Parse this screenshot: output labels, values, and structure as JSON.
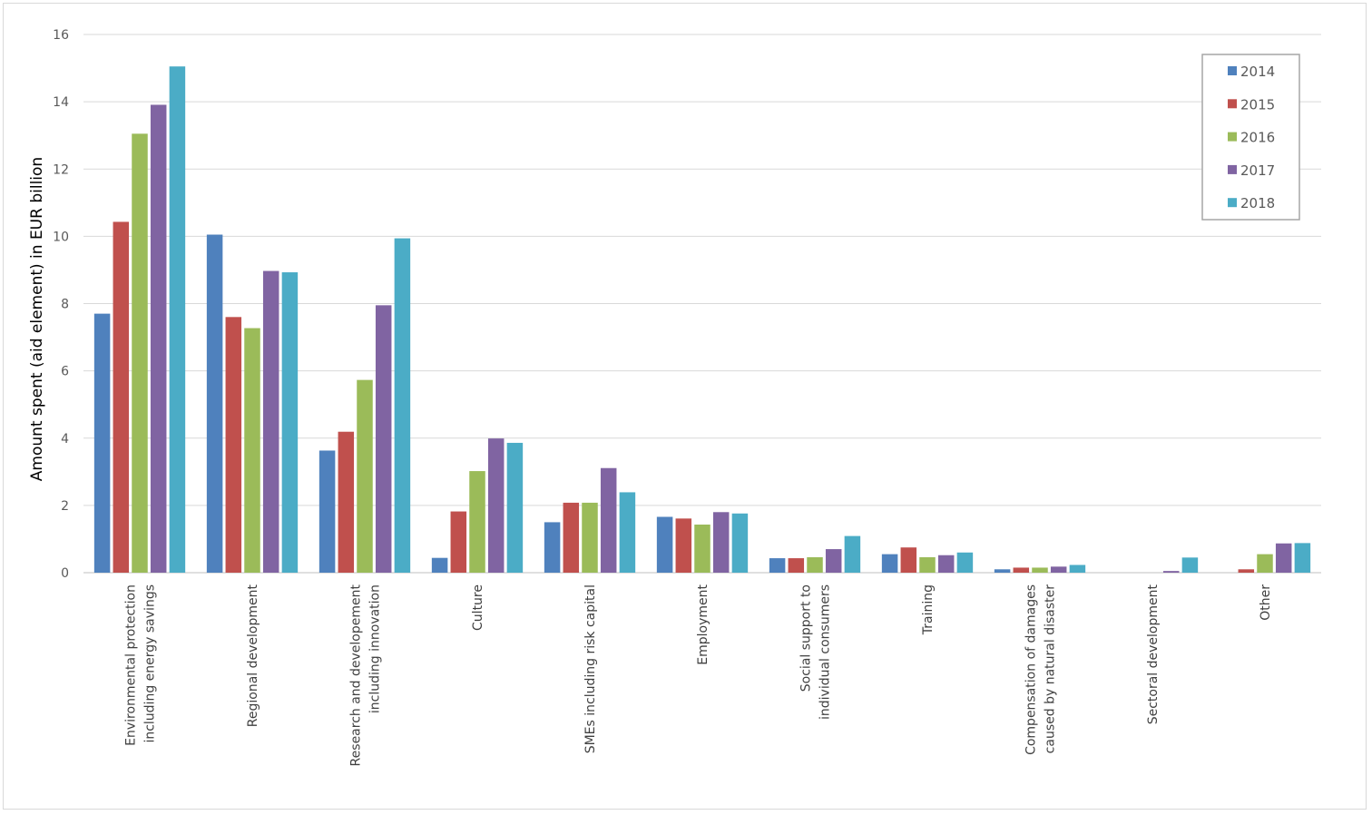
{
  "chart_data": {
    "type": "bar",
    "ylabel": "Amount spent (aid element) in EUR billion",
    "ylim": [
      0,
      16
    ],
    "yticks": [
      0,
      2,
      4,
      6,
      8,
      10,
      12,
      14,
      16
    ],
    "grid": true,
    "legend_position": "top-right",
    "categories": [
      [
        "Environmental protection",
        "including energy savings"
      ],
      [
        "Regional development"
      ],
      [
        "Research and developement",
        "including innovation"
      ],
      [
        "Culture"
      ],
      [
        "SMEs including risk capital"
      ],
      [
        "Employment"
      ],
      [
        "Social support to",
        "individual consumers"
      ],
      [
        "Training"
      ],
      [
        "Compensation of damages",
        "caused by natural disaster"
      ],
      [
        "Sectoral development"
      ],
      [
        "Other"
      ]
    ],
    "series": [
      {
        "name": "2014",
        "color": "#4f81bd",
        "values": [
          7.7,
          10.05,
          3.63,
          0.44,
          1.5,
          1.66,
          0.43,
          0.55,
          0.1,
          0.0,
          0.0
        ]
      },
      {
        "name": "2015",
        "color": "#c0504d",
        "values": [
          10.43,
          7.6,
          4.19,
          1.82,
          2.08,
          1.61,
          0.43,
          0.75,
          0.15,
          0.0,
          0.1
        ]
      },
      {
        "name": "2016",
        "color": "#9bbb59",
        "values": [
          13.05,
          7.27,
          5.73,
          3.02,
          2.08,
          1.43,
          0.46,
          0.46,
          0.15,
          0.0,
          0.55
        ]
      },
      {
        "name": "2017",
        "color": "#8064a2",
        "values": [
          13.91,
          8.97,
          7.95,
          3.99,
          3.11,
          1.8,
          0.7,
          0.52,
          0.18,
          0.05,
          0.87
        ]
      },
      {
        "name": "2018",
        "color": "#4bacc6",
        "values": [
          15.05,
          8.93,
          9.94,
          3.86,
          2.39,
          1.76,
          1.09,
          0.6,
          0.23,
          0.45,
          0.88
        ]
      }
    ]
  }
}
